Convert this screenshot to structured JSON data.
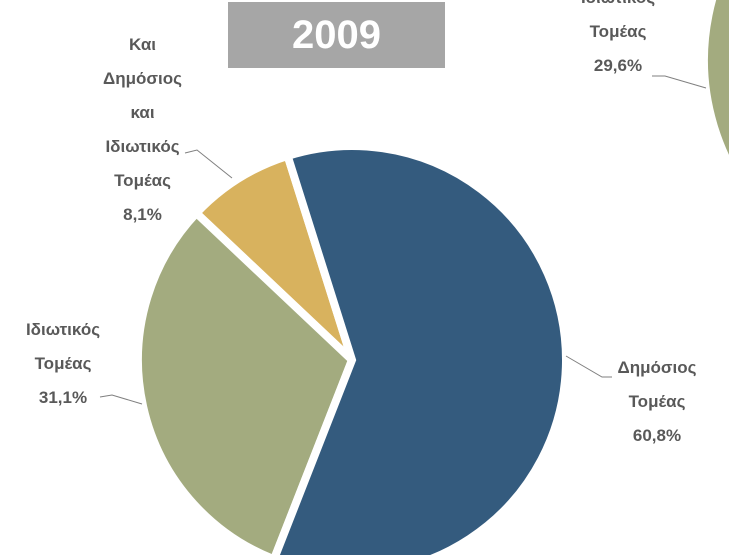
{
  "chart_data": [
    {
      "type": "pie",
      "title": "2009",
      "categories": [
        "Δημόσιος Τομέας",
        "Ιδιωτικός Τομέας",
        "Και Δημόσιος και Ιδιωτικός Τομέας"
      ],
      "values": [
        60.8,
        31.1,
        8.1
      ],
      "value_labels": [
        "60,8%",
        "31,1%",
        "8,1%"
      ],
      "colors": [
        "#345b7e",
        "#a3ab7f",
        "#d8b25e"
      ]
    },
    {
      "type": "pie",
      "categories": [
        "Ιδιωτικός Τομέας"
      ],
      "values": [
        29.6
      ],
      "value_labels": [
        "29,6%"
      ],
      "colors": [
        "#a3ab7f"
      ]
    }
  ]
}
